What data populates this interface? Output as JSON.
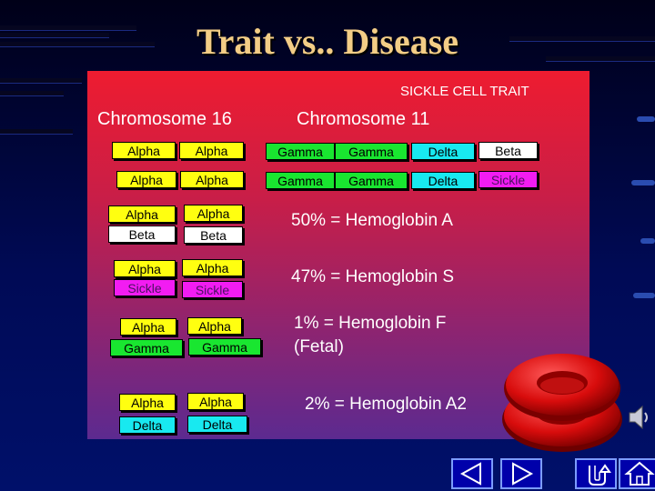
{
  "slide": {
    "title": "Trait vs.. Disease",
    "panel_heading": "SICKLE CELL TRAIT"
  },
  "chromosome16": {
    "label": "Chromosome 16",
    "rows": [
      [
        "Alpha",
        "Alpha"
      ],
      [
        "Alpha",
        "Alpha"
      ]
    ]
  },
  "chromosome11": {
    "label": "Chromosome 11",
    "rows": [
      [
        "Gamma",
        "Gamma",
        "Delta",
        "Beta"
      ],
      [
        "Gamma",
        "Gamma",
        "Delta",
        "Sickle"
      ]
    ]
  },
  "hemoglobins": [
    {
      "top": [
        "Alpha",
        "Alpha"
      ],
      "bottom": [
        "Beta",
        "Beta"
      ],
      "text": "50% = Hemoglobin A"
    },
    {
      "top": [
        "Alpha",
        "Alpha"
      ],
      "bottom": [
        "Sickle",
        "Sickle"
      ],
      "text": "47% = Hemoglobin S"
    },
    {
      "top": [
        "Alpha",
        "Alpha"
      ],
      "bottom": [
        "Gamma",
        "Gamma"
      ],
      "text": "1% = Hemoglobin F",
      "text2": "(Fetal)"
    },
    {
      "top": [
        "Alpha",
        "Alpha"
      ],
      "bottom": [
        "Delta",
        "Delta"
      ],
      "text": "2% = Hemoglobin A2"
    }
  ],
  "colors": {
    "title": "#f3cd86",
    "alpha": "#ffff10",
    "beta": "#ffffff",
    "gamma": "#19e630",
    "sickle": "#f21cf2",
    "delta": "#18e9f0",
    "nav_button": "#0000aa"
  },
  "icons": [
    "speaker-icon",
    "red-blood-cell-image",
    "previous-icon",
    "next-icon",
    "return-icon",
    "home-icon"
  ]
}
